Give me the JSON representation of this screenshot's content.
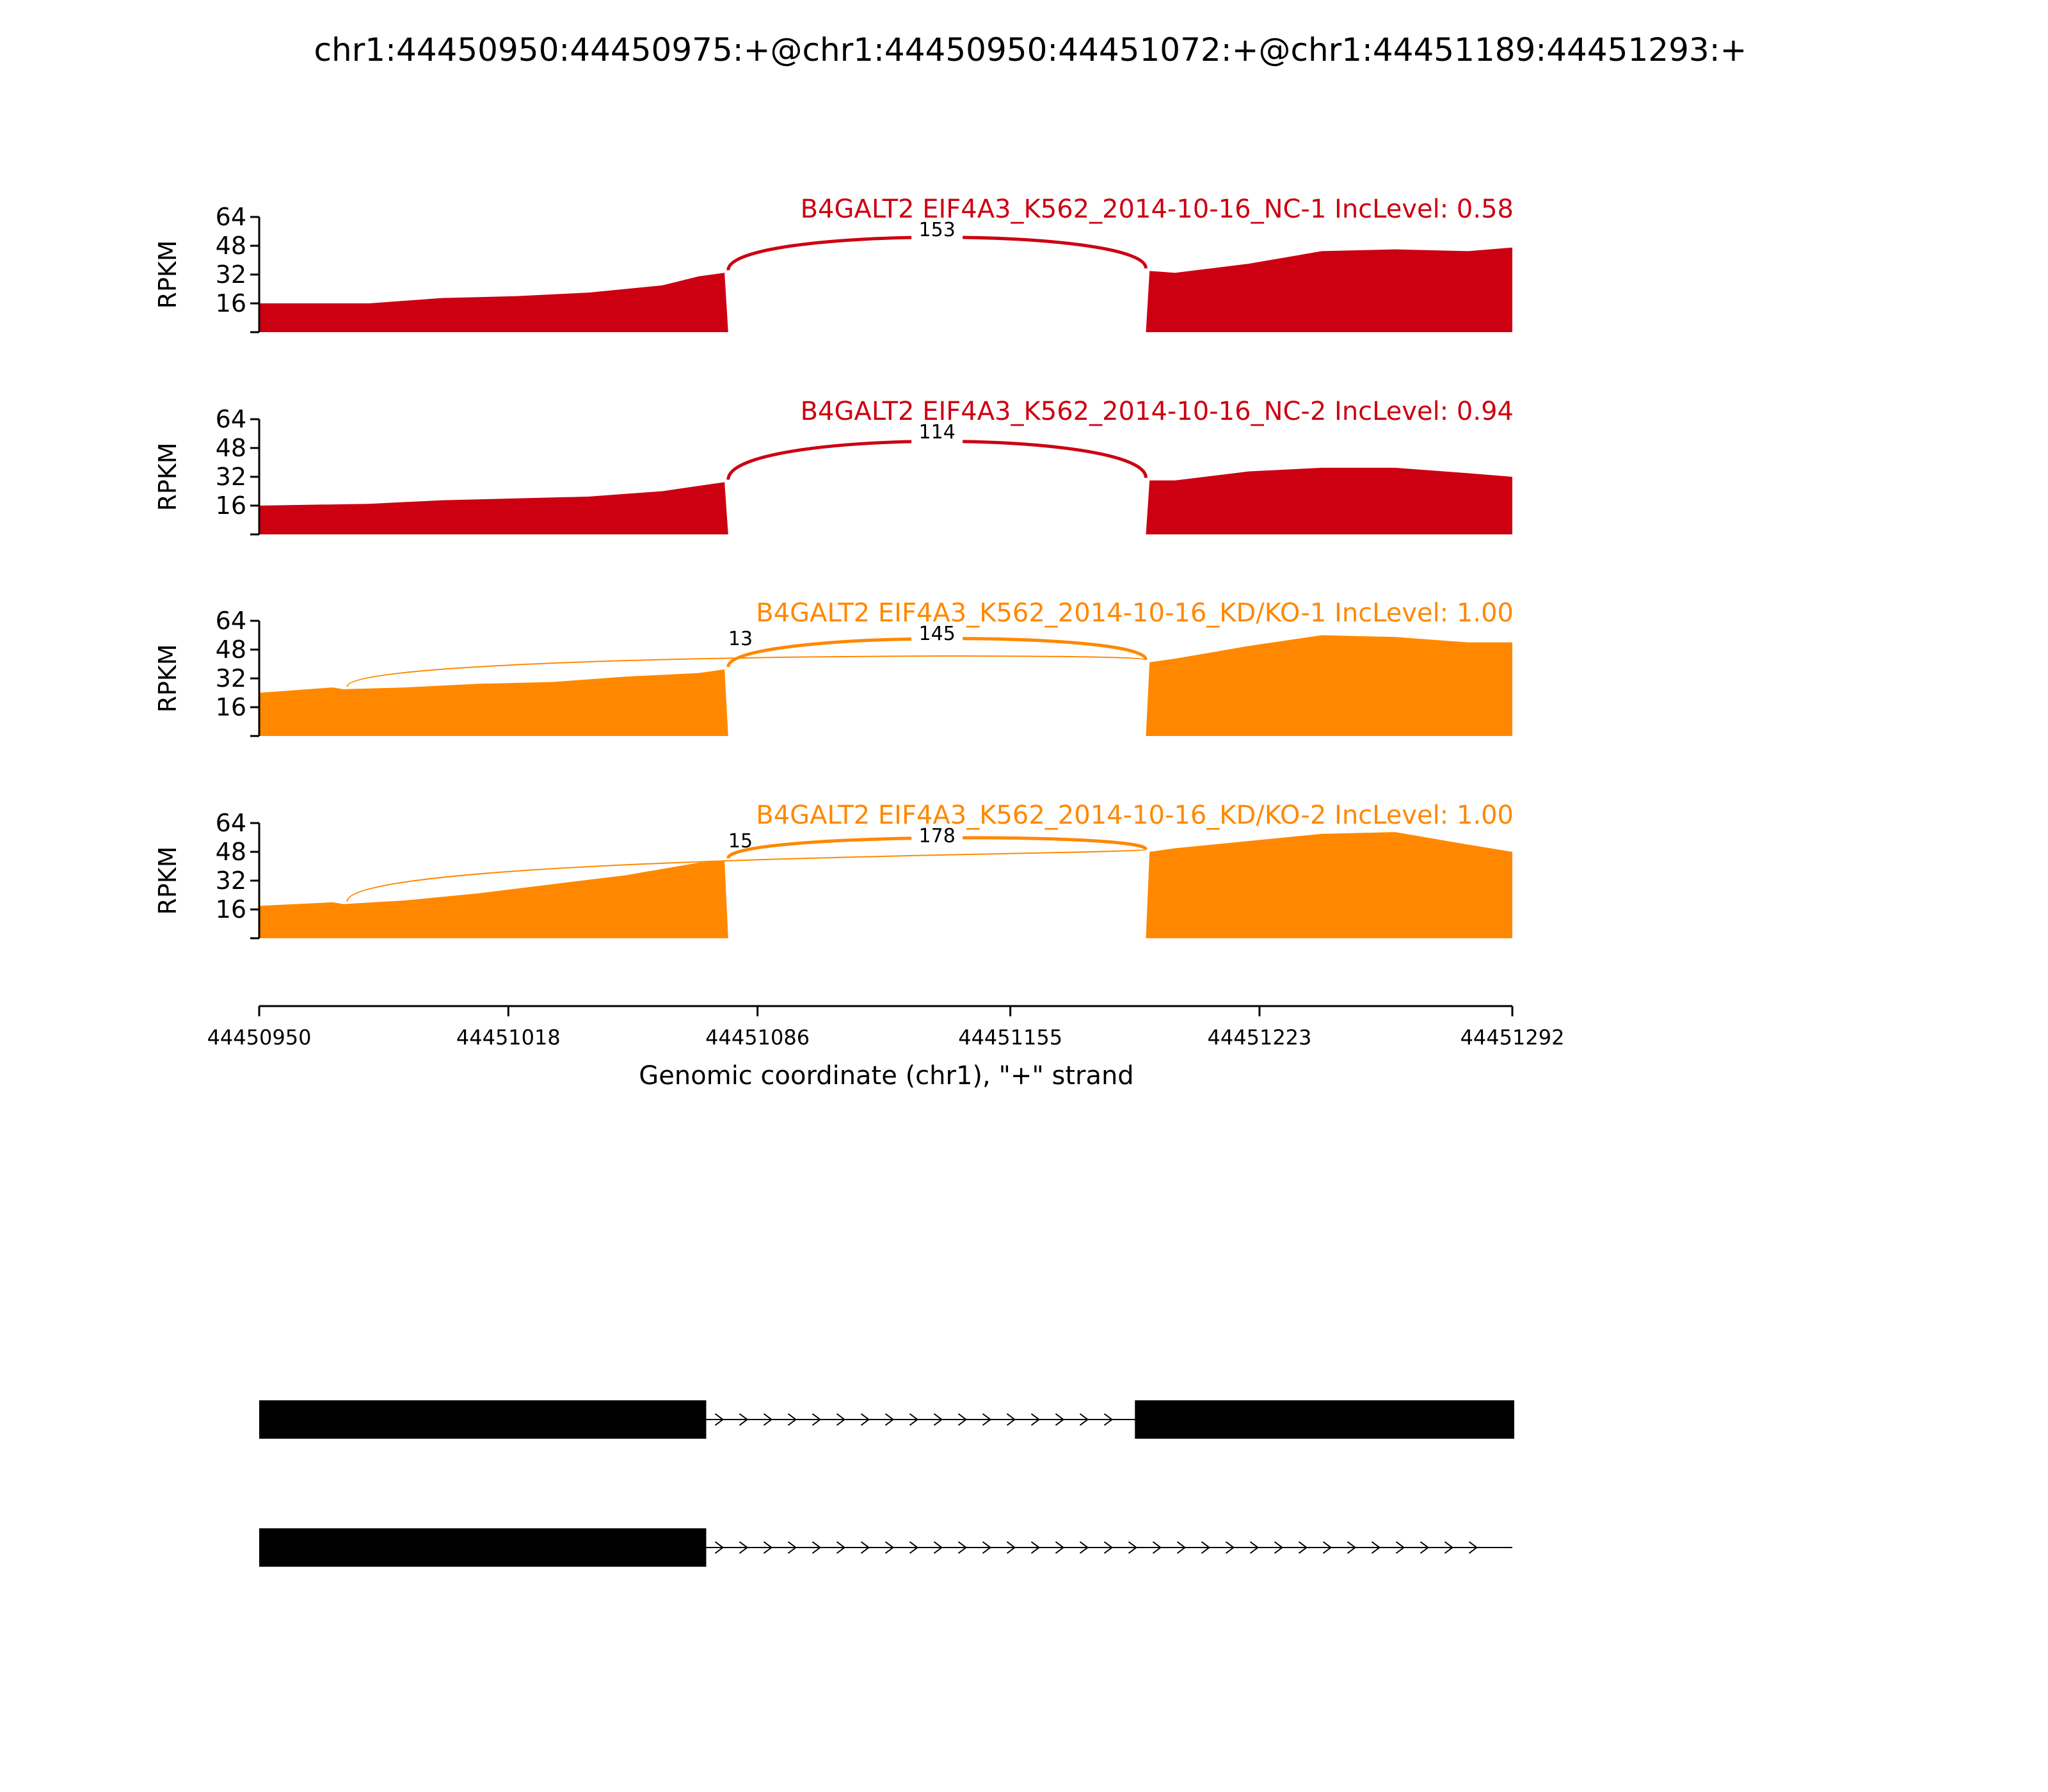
{
  "figure": {
    "title": "chr1:44450950:44450975:+@chr1:44450950:44451072:+@chr1:44451189:44451293:+"
  },
  "chart_data": {
    "type": "area",
    "title": "chr1:44450950:44450975:+@chr1:44450950:44451072:+@chr1:44451189:44451293:+",
    "xlabel": "Genomic coordinate (chr1), \"+\" strand",
    "ylabel": "RPKM",
    "xlim": [
      44450950,
      44451292
    ],
    "x_ticks": [
      "44450950",
      "44451018",
      "44451086",
      "44451155",
      "44451223",
      "44451292"
    ],
    "ylim": [
      0,
      64
    ],
    "y_ticks": [
      "16",
      "32",
      "48",
      "64"
    ],
    "grid": false,
    "panels": [
      {
        "title": "B4GALT2 EIF4A3_K562_2014-10-16_NC-1 IncLevel: 0.58",
        "color": "#cc0011",
        "coverage": {
          "x": [
            44450950,
            44450980,
            44451000,
            44451020,
            44451040,
            44451060,
            44451070,
            44451077,
            44451078,
            44451192,
            44451193,
            44451200,
            44451220,
            44451240,
            44451260,
            44451280,
            44451292
          ],
          "y": [
            16,
            16,
            19,
            20,
            22,
            26,
            31,
            33,
            0,
            0,
            34,
            33,
            38,
            45,
            46,
            45,
            47
          ]
        },
        "junctions": [
          {
            "from": 44451078,
            "to": 44451192,
            "count": "153",
            "weight": 153
          }
        ]
      },
      {
        "title": "B4GALT2 EIF4A3_K562_2014-10-16_NC-2 IncLevel: 0.94",
        "color": "#cc0011",
        "coverage": {
          "x": [
            44450950,
            44450980,
            44451000,
            44451020,
            44451040,
            44451060,
            44451070,
            44451077,
            44451078,
            44451192,
            44451193,
            44451200,
            44451220,
            44451240,
            44451260,
            44451280,
            44451292
          ],
          "y": [
            16,
            17,
            19,
            20,
            21,
            24,
            27,
            29,
            0,
            0,
            30,
            30,
            35,
            37,
            37,
            34,
            32
          ]
        },
        "junctions": [
          {
            "from": 44451078,
            "to": 44451192,
            "count": "114",
            "weight": 114
          }
        ]
      },
      {
        "title": "B4GALT2 EIF4A3_K562_2014-10-16_KD/KO-1 IncLevel: 1.00",
        "color": "#ff8800",
        "coverage": {
          "x": [
            44450950,
            44450970,
            44450973,
            44450990,
            44451010,
            44451030,
            44451050,
            44451070,
            44451077,
            44451078,
            44451192,
            44451193,
            44451200,
            44451220,
            44451240,
            44451260,
            44451280,
            44451292
          ],
          "y": [
            24,
            27,
            26,
            27,
            29,
            30,
            33,
            35,
            37,
            0,
            0,
            41,
            43,
            50,
            56,
            55,
            52,
            52
          ]
        },
        "junctions": [
          {
            "from": 44450974,
            "to": 44451192,
            "count": "13",
            "weight": 13
          },
          {
            "from": 44451078,
            "to": 44451192,
            "count": "145",
            "weight": 145
          }
        ]
      },
      {
        "title": "B4GALT2 EIF4A3_K562_2014-10-16_KD/KO-2 IncLevel: 1.00",
        "color": "#ff8800",
        "coverage": {
          "x": [
            44450950,
            44450970,
            44450973,
            44450990,
            44451010,
            44451030,
            44451050,
            44451070,
            44451077,
            44451078,
            44451192,
            44451193,
            44451200,
            44451220,
            44451240,
            44451260,
            44451280,
            44451292
          ],
          "y": [
            18,
            20,
            19,
            21,
            25,
            30,
            35,
            42,
            43,
            0,
            0,
            48,
            50,
            54,
            58,
            59,
            52,
            48
          ]
        },
        "junctions": [
          {
            "from": 44450974,
            "to": 44451192,
            "count": "15",
            "weight": 15
          },
          {
            "from": 44451078,
            "to": 44451192,
            "count": "178",
            "weight": 178
          }
        ]
      }
    ],
    "isoforms": [
      {
        "exons": [
          [
            44450950,
            44451072
          ],
          [
            44451189,
            44451293
          ]
        ]
      },
      {
        "exons": [
          [
            44450950,
            44451072
          ]
        ]
      }
    ]
  }
}
